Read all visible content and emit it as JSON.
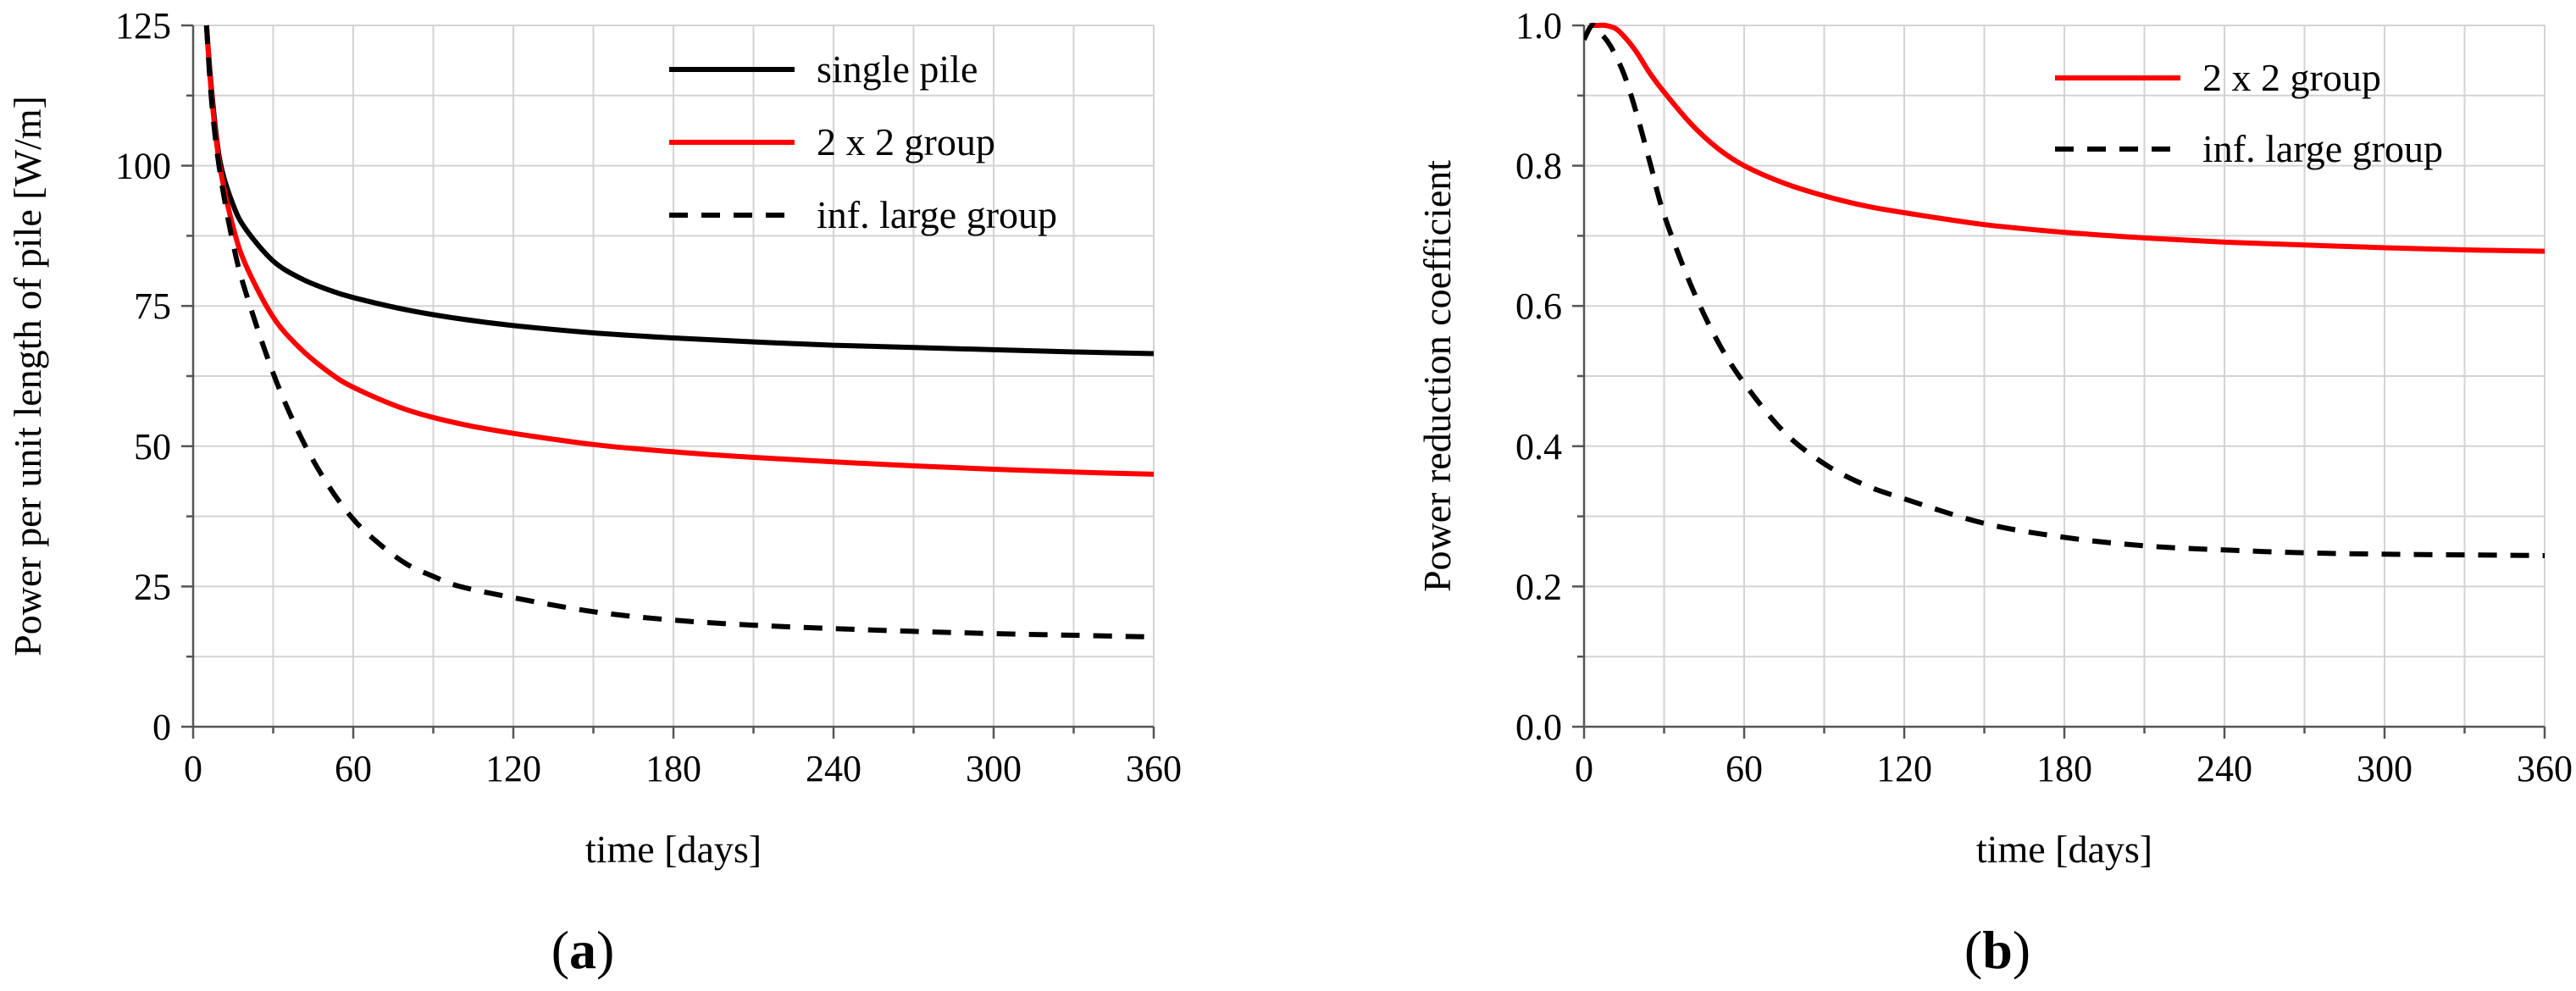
{
  "chart_data": [
    {
      "type": "line",
      "panel_label": "a",
      "title": "",
      "xlabel": "time [days]",
      "ylabel": "Power per unit length of pile [W/m]",
      "xlim": [
        0,
        360
      ],
      "ylim": [
        0,
        125
      ],
      "xticks": [
        0,
        60,
        120,
        180,
        240,
        300,
        360
      ],
      "yticks": [
        0,
        25,
        50,
        75,
        100,
        125
      ],
      "grid": true,
      "legend_position": "top-right",
      "series": [
        {
          "name": "single pile",
          "color": "#000000",
          "dash": "solid",
          "x": [
            5,
            7,
            10,
            15,
            20,
            30,
            40,
            50,
            60,
            80,
            100,
            120,
            150,
            180,
            210,
            240,
            270,
            300,
            330,
            360
          ],
          "y": [
            125,
            113,
            101,
            93,
            88.5,
            83,
            80,
            78,
            76.5,
            74.3,
            72.7,
            71.5,
            70.2,
            69.3,
            68.6,
            68,
            67.6,
            67.2,
            66.8,
            66.5
          ]
        },
        {
          "name": "2 x 2 group",
          "color": "#ff0000",
          "dash": "solid",
          "x": [
            5,
            7,
            10,
            15,
            20,
            30,
            40,
            50,
            60,
            80,
            100,
            120,
            150,
            180,
            210,
            240,
            270,
            300,
            330,
            360
          ],
          "y": [
            125,
            112,
            100,
            89,
            82,
            73,
            67.5,
            63.5,
            60.5,
            56.5,
            54,
            52.3,
            50.3,
            49,
            48,
            47.2,
            46.5,
            45.9,
            45.4,
            45
          ]
        },
        {
          "name": "inf. large group",
          "color": "#000000",
          "dash": "dashed",
          "x": [
            5,
            7,
            10,
            15,
            20,
            30,
            40,
            50,
            60,
            70,
            80,
            90,
            100,
            120,
            150,
            180,
            210,
            240,
            270,
            300,
            330,
            360
          ],
          "y": [
            125,
            111,
            99,
            86,
            77,
            63,
            52,
            43.5,
            37,
            32.5,
            29,
            26.8,
            25,
            23,
            20.5,
            19,
            18.1,
            17.5,
            17,
            16.6,
            16.3,
            16
          ]
        }
      ]
    },
    {
      "type": "line",
      "panel_label": "b",
      "title": "",
      "xlabel": "time [days]",
      "ylabel": "Power reduction coefficient",
      "xlim": [
        0,
        360
      ],
      "ylim": [
        0,
        1.0
      ],
      "xticks": [
        0,
        60,
        120,
        180,
        240,
        300,
        360
      ],
      "yticks": [
        0.0,
        0.2,
        0.4,
        0.6,
        0.8,
        1.0
      ],
      "ytick_labels": [
        "0.0",
        "0.2",
        "0.4",
        "0.6",
        "0.8",
        "1.0"
      ],
      "grid": true,
      "legend_position": "top-right",
      "series": [
        {
          "name": "2 x 2 group",
          "color": "#ff0000",
          "dash": "solid",
          "x": [
            2,
            5,
            8,
            12,
            16,
            20,
            25,
            30,
            40,
            50,
            60,
            75,
            90,
            105,
            120,
            150,
            180,
            210,
            240,
            270,
            300,
            330,
            360
          ],
          "y": [
            1.0,
            1.0,
            1.0,
            0.995,
            0.98,
            0.96,
            0.93,
            0.905,
            0.86,
            0.825,
            0.8,
            0.775,
            0.757,
            0.743,
            0.733,
            0.716,
            0.705,
            0.697,
            0.691,
            0.687,
            0.683,
            0.68,
            0.678
          ]
        },
        {
          "name": "inf. large group",
          "color": "#000000",
          "dash": "dashed",
          "x": [
            0,
            3,
            6,
            10,
            15,
            20,
            25,
            30,
            40,
            50,
            60,
            75,
            90,
            105,
            120,
            150,
            180,
            210,
            240,
            270,
            300,
            330,
            360
          ],
          "y": [
            0.98,
            1.0,
            0.99,
            0.97,
            0.93,
            0.87,
            0.8,
            0.73,
            0.63,
            0.55,
            0.49,
            0.42,
            0.375,
            0.345,
            0.325,
            0.29,
            0.27,
            0.258,
            0.252,
            0.248,
            0.246,
            0.245,
            0.244
          ]
        }
      ]
    }
  ]
}
